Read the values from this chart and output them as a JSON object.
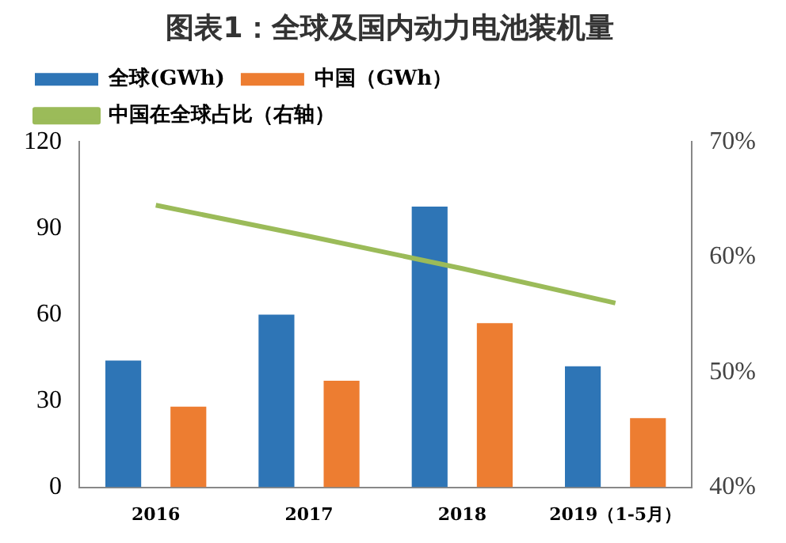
{
  "chart_data": {
    "type": "bar",
    "title": "图表1：全球及国内动力电池装机量",
    "categories": [
      "2016",
      "2017",
      "2018",
      "2019（1-5月）"
    ],
    "series": [
      {
        "name": "全球(GWh)",
        "color": "#2e75b6",
        "values": [
          44,
          60,
          97.5,
          42
        ]
      },
      {
        "name": "中国（GWh）",
        "color": "#ed7d31",
        "values": [
          28,
          37,
          57,
          24
        ]
      },
      {
        "name": "中国在全球占比（右轴）",
        "type": "line",
        "axis": "y2",
        "color": "#9bbb59",
        "values": [
          64.5,
          61.8,
          59,
          56
        ]
      }
    ],
    "ylim": [
      0,
      120
    ],
    "yticks": [
      0,
      30,
      60,
      90,
      120
    ],
    "y2lim": [
      40,
      70
    ],
    "y2ticks": [
      {
        "value": 40,
        "label": "40%"
      },
      {
        "value": 50,
        "label": "50%"
      },
      {
        "value": 60,
        "label": "60%"
      },
      {
        "value": 70,
        "label": "70%"
      }
    ],
    "grid": false,
    "legend": "top left",
    "marker": "none"
  }
}
